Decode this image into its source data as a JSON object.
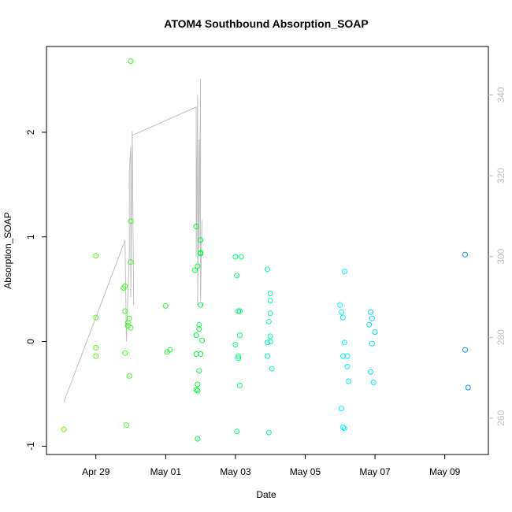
{
  "chart_data": {
    "type": "scatter",
    "title": "ATOM4 Southbound Absorption_SOAP",
    "xlabel": "Date",
    "ylabel": "Absorption_SOAP",
    "x_ticks": [
      "Apr 29",
      "May 01",
      "May 03",
      "May 05",
      "May 07",
      "May 09"
    ],
    "y_ticks": [
      "-1",
      "0",
      "1",
      "2"
    ],
    "y2_ticks": [
      "260",
      "280",
      "300",
      "320",
      "340"
    ],
    "xlim": [
      "2023-04-27 14:00",
      "2023-05-10 06:00"
    ],
    "ylim": [
      -1.08,
      2.82
    ],
    "y2lim": [
      251,
      352
    ],
    "grid": false,
    "colors": {
      "scatter_gradient": [
        "#6aff00",
        "#00ff3c",
        "#00ffff",
        "#0096ff"
      ],
      "line": "#c0c0c0",
      "right_axis": "#bfbfbf"
    },
    "series": [
      {
        "type": "scatter",
        "points": [
          [
            "04-28 02:00",
            -0.84
          ],
          [
            "04-29 00:00",
            0.82
          ],
          [
            "04-29 00:00",
            0.23
          ],
          [
            "04-29 00:00",
            -0.06
          ],
          [
            "04-29 00:00",
            -0.14
          ],
          [
            "04-29 19:00",
            0.51
          ],
          [
            "04-29 20:00",
            0.53
          ],
          [
            "04-29 20:00",
            0.29
          ],
          [
            "04-29 20:00",
            -0.11
          ],
          [
            "04-29 21:00",
            -0.8
          ],
          [
            "04-29 22:00",
            0.18
          ],
          [
            "04-29 22:00",
            0.15
          ],
          [
            "04-29 23:00",
            0.22
          ],
          [
            "04-30 00:00",
            0.13
          ],
          [
            "04-29 23:00",
            -0.33
          ],
          [
            "04-30 00:00",
            2.68
          ],
          [
            "04-30 00:00",
            1.15
          ],
          [
            "04-30 00:00",
            0.76
          ],
          [
            "05-01 00:00",
            0.34
          ],
          [
            "05-01 01:00",
            -0.1
          ],
          [
            "05-01 03:00",
            -0.08
          ],
          [
            "05-01 20:00",
            0.68
          ],
          [
            "05-01 21:00",
            1.1
          ],
          [
            "05-01 22:00",
            0.72
          ],
          [
            "05-02 00:00",
            0.97
          ],
          [
            "05-02 00:00",
            0.85
          ],
          [
            "05-02 00:00",
            0.84
          ],
          [
            "05-02 00:00",
            0.35
          ],
          [
            "05-01 23:00",
            0.16
          ],
          [
            "05-01 23:00",
            0.12
          ],
          [
            "05-01 21:00",
            0.06
          ],
          [
            "05-02 01:00",
            0.01
          ],
          [
            "05-01 21:00",
            -0.12
          ],
          [
            "05-02 00:00",
            -0.12
          ],
          [
            "05-01 23:00",
            -0.28
          ],
          [
            "05-01 22:00",
            -0.41
          ],
          [
            "05-01 21:00",
            -0.46
          ],
          [
            "05-01 22:00",
            -0.47
          ],
          [
            "05-01 22:00",
            -0.93
          ],
          [
            "05-03 00:00",
            0.81
          ],
          [
            "05-03 04:00",
            0.81
          ],
          [
            "05-03 01:00",
            0.63
          ],
          [
            "05-03 02:00",
            0.29
          ],
          [
            "05-03 03:00",
            0.29
          ],
          [
            "05-03 03:00",
            0.06
          ],
          [
            "05-03 00:00",
            -0.03
          ],
          [
            "05-03 02:00",
            -0.14
          ],
          [
            "05-03 02:00",
            -0.16
          ],
          [
            "05-03 03:00",
            -0.42
          ],
          [
            "05-03 01:00",
            -0.86
          ],
          [
            "05-03 22:00",
            0.69
          ],
          [
            "05-04 00:00",
            0.46
          ],
          [
            "05-04 00:00",
            0.39
          ],
          [
            "05-04 00:00",
            0.27
          ],
          [
            "05-03 23:00",
            0.19
          ],
          [
            "05-04 00:00",
            0.05
          ],
          [
            "05-04 00:00",
            0.0
          ],
          [
            "05-03 22:00",
            -0.01
          ],
          [
            "05-03 22:00",
            -0.14
          ],
          [
            "05-04 01:00",
            -0.26
          ],
          [
            "05-03 23:00",
            -0.87
          ],
          [
            "05-06 00:00",
            0.35
          ],
          [
            "05-06 01:00",
            0.28
          ],
          [
            "05-06 02:00",
            0.23
          ],
          [
            "05-06 03:00",
            0.67
          ],
          [
            "05-06 03:00",
            -0.01
          ],
          [
            "05-06 02:00",
            -0.14
          ],
          [
            "05-06 05:00",
            -0.14
          ],
          [
            "05-06 05:00",
            -0.24
          ],
          [
            "05-06 06:00",
            -0.38
          ],
          [
            "05-06 01:00",
            -0.64
          ],
          [
            "05-06 02:00",
            -0.82
          ],
          [
            "05-06 03:00",
            -0.83
          ],
          [
            "05-06 21:00",
            0.28
          ],
          [
            "05-06 22:00",
            0.22
          ],
          [
            "05-06 20:00",
            0.16
          ],
          [
            "05-07 00:00",
            0.09
          ],
          [
            "05-06 22:00",
            -0.02
          ],
          [
            "05-06 21:00",
            -0.29
          ],
          [
            "05-06 23:00",
            -0.39
          ],
          [
            "05-09 14:00",
            0.83
          ],
          [
            "05-09 14:00",
            -0.08
          ],
          [
            "05-09 16:00",
            -0.44
          ]
        ]
      },
      {
        "type": "line",
        "axis": "right",
        "points": [
          [
            "04-28 02:00",
            264
          ],
          [
            "04-29 20:00",
            304
          ],
          [
            "04-29 21:00",
            279
          ],
          [
            "04-29 23:00",
            301
          ],
          [
            "04-29 23:00",
            321
          ],
          [
            "04-30 00:00",
            327
          ],
          [
            "04-30 00:00",
            290
          ],
          [
            "04-30 01:00",
            331
          ],
          [
            "04-30 02:00",
            288
          ],
          [
            "04-30 01:00",
            330
          ],
          [
            "05-01 21:00",
            337
          ],
          [
            "05-01 21:00",
            300
          ],
          [
            "05-01 22:00",
            340
          ],
          [
            "05-01 22:00",
            288
          ],
          [
            "05-01 23:00",
            329
          ],
          [
            "05-01 23:00",
            302
          ],
          [
            "05-02 00:00",
            344
          ],
          [
            "05-02 00:00",
            289
          ],
          [
            "05-02 01:00",
            309
          ]
        ]
      }
    ]
  }
}
